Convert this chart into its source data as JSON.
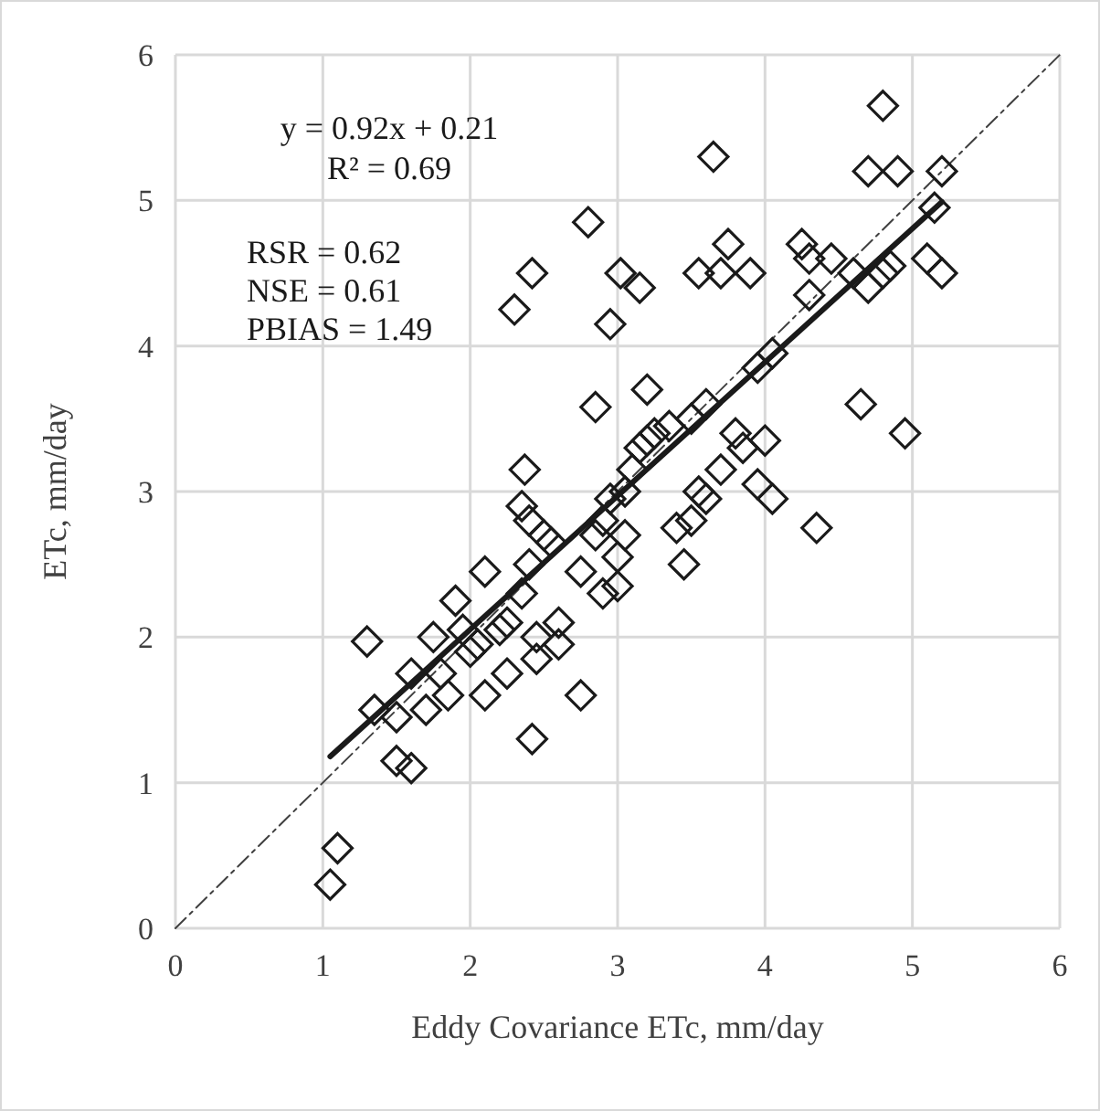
{
  "chart_data": {
    "type": "scatter",
    "xlabel": "Eddy Covariance ETc, mm/day",
    "ylabel": "ETc, mm/day",
    "xlim": [
      0,
      6
    ],
    "ylim": [
      0,
      6
    ],
    "xticks": [
      0,
      1,
      2,
      3,
      4,
      5,
      6
    ],
    "yticks": [
      0,
      1,
      2,
      3,
      4,
      5,
      6
    ],
    "grid": true,
    "annotations": [
      "y = 0.92x + 0.21",
      "R² = 0.69",
      "RSR = 0.62",
      "NSE = 0.61",
      "PBIAS = 1.49"
    ],
    "series": [
      {
        "type": "line",
        "color": "#404040",
        "line_style": "dashed",
        "marker": "none",
        "x": [
          0,
          6
        ],
        "values": [
          0,
          6
        ]
      },
      {
        "color": "#1a1a1a",
        "marker": "diamond",
        "x": [
          1.05,
          1.1,
          1.3,
          1.35,
          1.5,
          1.5,
          1.6,
          1.6,
          1.7,
          1.75,
          1.8,
          1.85,
          1.9,
          1.95,
          2.0,
          2.05,
          2.1,
          2.1,
          2.2,
          2.25,
          2.25,
          2.3,
          2.35,
          2.35,
          2.37,
          2.4,
          2.4,
          2.42,
          2.42,
          2.45,
          2.45,
          2.5,
          2.55,
          2.6,
          2.6,
          2.75,
          2.75,
          2.8,
          2.85,
          2.85,
          2.9,
          2.9,
          2.95,
          2.95,
          3.0,
          3.0,
          3.02,
          3.05,
          3.05,
          3.1,
          3.15,
          3.15,
          3.2,
          3.2,
          3.25,
          3.35,
          3.4,
          3.45,
          3.5,
          3.5,
          3.55,
          3.55,
          3.6,
          3.65,
          3.6,
          3.7,
          3.7,
          3.75,
          3.8,
          3.85,
          3.9,
          3.95,
          3.95,
          4.0,
          4.05,
          4.05,
          4.25,
          4.3,
          4.3,
          4.35,
          4.45,
          4.6,
          4.65,
          4.7,
          4.7,
          4.8,
          4.8,
          4.85,
          4.9,
          4.95,
          5.1,
          5.15,
          5.2,
          5.2
        ],
        "values": [
          0.3,
          0.55,
          1.97,
          1.5,
          1.15,
          1.45,
          1.1,
          1.75,
          1.5,
          2.0,
          1.75,
          1.6,
          2.25,
          2.05,
          1.9,
          1.95,
          1.6,
          2.45,
          2.05,
          2.1,
          1.75,
          4.25,
          2.3,
          2.9,
          3.15,
          2.5,
          2.8,
          1.3,
          4.5,
          2.0,
          1.85,
          2.7,
          2.65,
          2.1,
          1.95,
          1.6,
          2.45,
          4.85,
          2.7,
          3.58,
          2.3,
          2.8,
          4.15,
          2.95,
          2.55,
          2.35,
          4.5,
          3.0,
          2.7,
          3.15,
          4.4,
          3.3,
          3.7,
          3.35,
          3.4,
          3.45,
          2.75,
          2.5,
          2.8,
          3.5,
          4.5,
          3.0,
          3.6,
          5.3,
          2.95,
          3.15,
          4.5,
          4.7,
          3.4,
          3.3,
          4.5,
          3.05,
          3.85,
          3.35,
          2.95,
          3.95,
          4.7,
          4.35,
          4.6,
          2.75,
          4.6,
          4.5,
          3.6,
          4.4,
          5.2,
          4.5,
          5.65,
          4.55,
          5.2,
          3.4,
          4.6,
          4.95,
          5.2,
          4.5
        ]
      },
      {
        "type": "line",
        "color": "#1a1a1a",
        "line_style": "solid",
        "marker": "none",
        "x": [
          1.05,
          5.2
        ],
        "values": [
          1.18,
          4.99
        ]
      }
    ]
  }
}
